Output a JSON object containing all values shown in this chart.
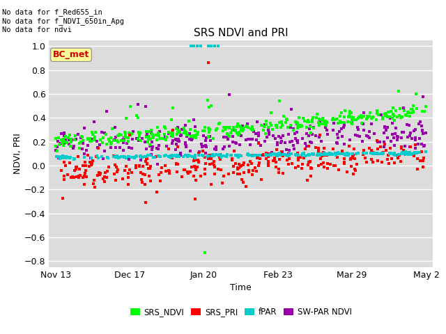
{
  "title": "SRS NDVI and PRI",
  "xlabel": "Time",
  "ylabel": "NDVI, PRI",
  "ylim": [
    -0.85,
    1.05
  ],
  "yticks": [
    -0.8,
    -0.6,
    -0.4,
    -0.2,
    0.0,
    0.2,
    0.4,
    0.6,
    0.8,
    1.0
  ],
  "plot_bg_color": "#dcdcdc",
  "fig_bg_color": "#ffffff",
  "header_lines": [
    "No data for f_Red655_in",
    "No data for f_NDVI_650in_Apg",
    "No data for ndvi"
  ],
  "annotation_box": "BC_met",
  "annotation_box_color": "#ffff99",
  "annotation_box_textcolor": "#cc0000",
  "colors": {
    "SRS_NDVI": "#00ff00",
    "SRS_PRI": "#ff0000",
    "fPAR": "#00cccc",
    "SW_PAR_NDVI": "#9900aa"
  },
  "legend_labels": [
    "SRS_NDVI",
    "SRS_PRI",
    "fPAR",
    "SW-PAR NDVI"
  ],
  "xtick_labels": [
    "Nov 13",
    "Dec 17",
    "Jan 20",
    "Feb 23",
    "Mar 29",
    "May 2"
  ],
  "xtick_pos": [
    0,
    34,
    68,
    102,
    136,
    170
  ],
  "total_days": 170,
  "marker_size": 9
}
